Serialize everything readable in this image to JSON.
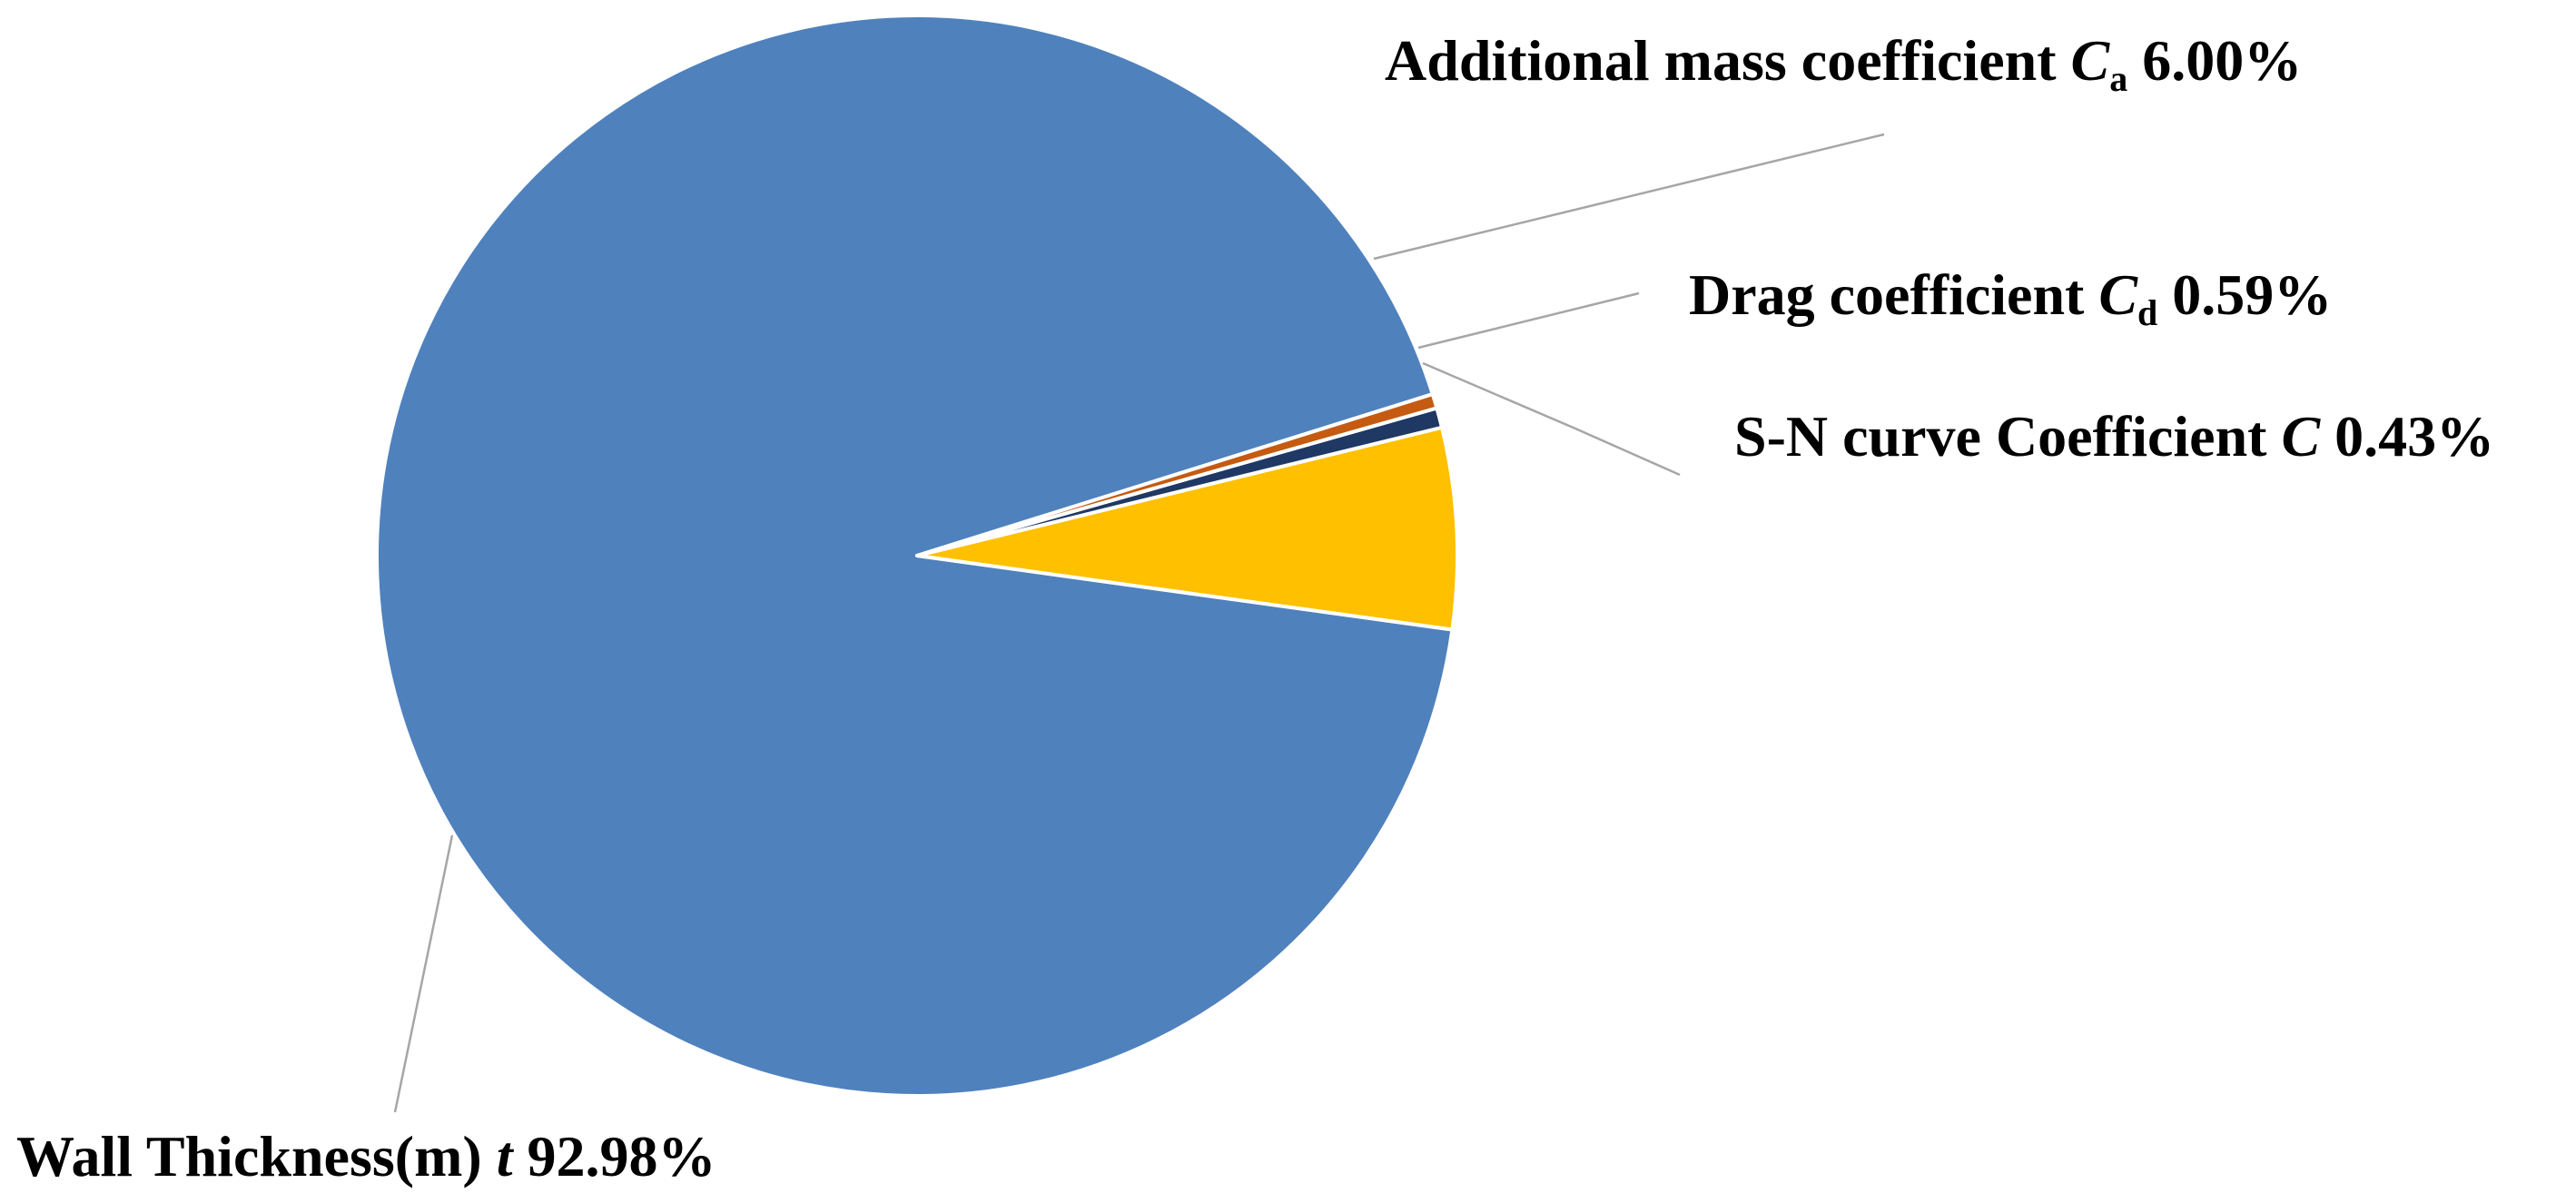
{
  "chart_data": {
    "type": "pie",
    "title": "",
    "slices": [
      {
        "name": "Wall Thickness(m)",
        "symbol": "t",
        "subscript": "",
        "value": 92.98,
        "value_label": "92.98%",
        "color": "#4f81bd"
      },
      {
        "name": "Additional mass coefficient",
        "symbol": "C",
        "subscript": "a",
        "value": 6.0,
        "value_label": "6.00%",
        "color": "#ffc000"
      },
      {
        "name": "Drag coefficient",
        "symbol": "C",
        "subscript": "d",
        "value": 0.59,
        "value_label": "0.59%",
        "color": "#1f3864"
      },
      {
        "name": "S-N curve Coefficient",
        "symbol": "C",
        "subscript": "",
        "value": 0.43,
        "value_label": "0.43%",
        "color": "#c55a11"
      }
    ],
    "legend": "none",
    "data_labels": "outside-with-leader-lines"
  }
}
